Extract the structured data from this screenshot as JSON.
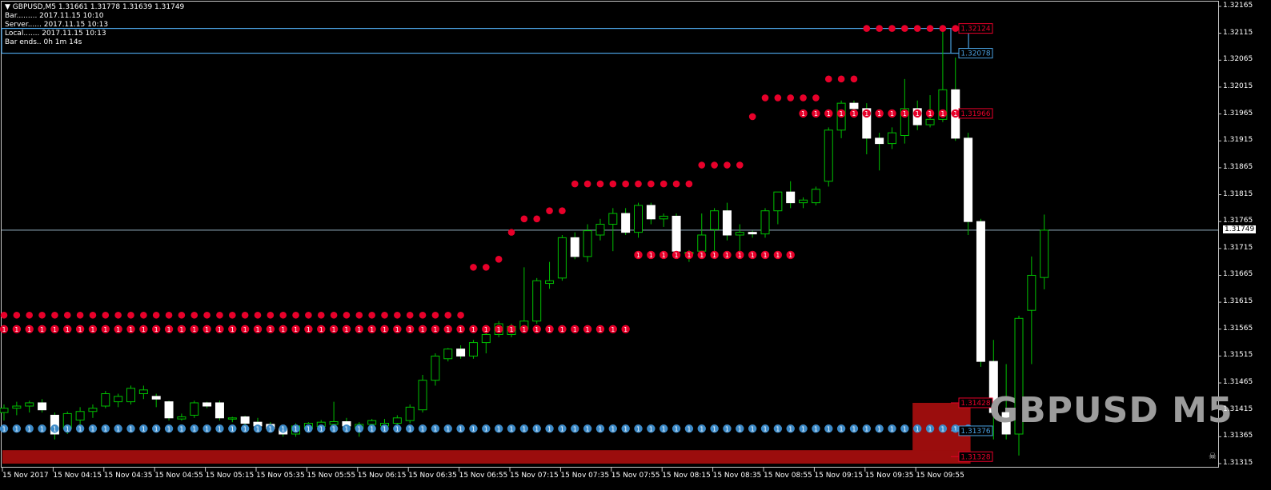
{
  "header": {
    "symbol_line": "GBPUSD,M5  1.31661 1.31778 1.31639 1.31749",
    "bar": "Bar......... 2017.11.15 10:10",
    "server": "Server...... 2017.11.15 10:13",
    "local": "Local....... 2017.11.15 10:13",
    "bar_ends": "Bar ends.. 0h 1m 14s"
  },
  "watermark": "GBPUSD M5",
  "colors": {
    "background": "#000000",
    "bull": "#00c000",
    "bear_fill": "#ffffff",
    "resistance": "#e8002a",
    "support": "#3c8ac8",
    "zone": "#9b0d0d",
    "info_box": "#4aa0e0"
  },
  "price_axis": {
    "min": 1.31315,
    "max": 1.32165,
    "ticks": [
      "1.32165",
      "1.32115",
      "1.32065",
      "1.32015",
      "1.31965",
      "1.31915",
      "1.31865",
      "1.31815",
      "1.31765",
      "1.31715",
      "1.31665",
      "1.31615",
      "1.31565",
      "1.31515",
      "1.31465",
      "1.31415",
      "1.31365",
      "1.31315"
    ],
    "current": "1.31749"
  },
  "time_axis": {
    "labels": [
      "15 Nov 2017",
      "15 Nov 04:15",
      "15 Nov 04:35",
      "15 Nov 04:55",
      "15 Nov 05:15",
      "15 Nov 05:35",
      "15 Nov 05:55",
      "15 Nov 06:15",
      "15 Nov 06:35",
      "15 Nov 06:55",
      "15 Nov 07:15",
      "15 Nov 07:35",
      "15 Nov 07:55",
      "15 Nov 08:15",
      "15 Nov 08:35",
      "15 Nov 08:55",
      "15 Nov 09:15",
      "15 Nov 09:35",
      "15 Nov 09:55"
    ]
  },
  "level_labels": [
    {
      "text": "1.32124",
      "price": 1.32124,
      "color": "#e8002a"
    },
    {
      "text": "1.32078",
      "price": 1.32078,
      "color": "#4aa0e0"
    },
    {
      "text": "1.31966",
      "price": 1.31966,
      "color": "#e8002a"
    },
    {
      "text": "1.31428",
      "price": 1.31428,
      "color": "#e8002a"
    },
    {
      "text": "1.31376",
      "price": 1.31376,
      "color": "#4aa0e0"
    },
    {
      "text": "1.31328",
      "price": 1.31328,
      "color": "#e8002a"
    }
  ],
  "chart_data": {
    "type": "candlestick",
    "symbol": "GBPUSD",
    "timeframe": "M5",
    "candles": [
      [
        1.3141,
        1.31425,
        1.31395,
        1.31418
      ],
      [
        1.31418,
        1.3143,
        1.31405,
        1.31422
      ],
      [
        1.31422,
        1.31432,
        1.3141,
        1.31428
      ],
      [
        1.31428,
        1.31435,
        1.3141,
        1.31415
      ],
      [
        1.31405,
        1.3141,
        1.3136,
        1.3137
      ],
      [
        1.3138,
        1.31412,
        1.3137,
        1.31408
      ],
      [
        1.31396,
        1.3142,
        1.3138,
        1.31412
      ],
      [
        1.31412,
        1.31425,
        1.314,
        1.31418
      ],
      [
        1.31422,
        1.3145,
        1.31418,
        1.31445
      ],
      [
        1.3143,
        1.31445,
        1.3142,
        1.3144
      ],
      [
        1.3143,
        1.3146,
        1.31425,
        1.31455
      ],
      [
        1.31445,
        1.3146,
        1.31435,
        1.31452
      ],
      [
        1.3144,
        1.31445,
        1.3142,
        1.31435
      ],
      [
        1.3143,
        1.31432,
        1.31395,
        1.314
      ],
      [
        1.31398,
        1.31408,
        1.31395,
        1.31402
      ],
      [
        1.31405,
        1.31432,
        1.314,
        1.31428
      ],
      [
        1.31428,
        1.3143,
        1.31418,
        1.31422
      ],
      [
        1.31428,
        1.31432,
        1.31395,
        1.314
      ],
      [
        1.31398,
        1.31402,
        1.31392,
        1.314
      ],
      [
        1.31402,
        1.31404,
        1.31385,
        1.3139
      ],
      [
        1.31392,
        1.314,
        1.3138,
        1.31385
      ],
      [
        1.31388,
        1.31392,
        1.31375,
        1.3138
      ],
      [
        1.3138,
        1.31385,
        1.31365,
        1.3137
      ],
      [
        1.3137,
        1.3139,
        1.31365,
        1.31385
      ],
      [
        1.3138,
        1.31392,
        1.31378,
        1.3139
      ],
      [
        1.31384,
        1.31396,
        1.31378,
        1.31392
      ],
      [
        1.31388,
        1.3143,
        1.3138,
        1.31393
      ],
      [
        1.31393,
        1.314,
        1.3138,
        1.31385
      ],
      [
        1.3138,
        1.31392,
        1.31365,
        1.31388
      ],
      [
        1.31388,
        1.31398,
        1.31378,
        1.31395
      ],
      [
        1.31385,
        1.31398,
        1.3138,
        1.3139
      ],
      [
        1.3139,
        1.31405,
        1.31385,
        1.314
      ],
      [
        1.31395,
        1.31425,
        1.3139,
        1.3142
      ],
      [
        1.31415,
        1.3148,
        1.3141,
        1.3147
      ],
      [
        1.3147,
        1.3152,
        1.3146,
        1.31515
      ],
      [
        1.3151,
        1.3153,
        1.31505,
        1.31528
      ],
      [
        1.31528,
        1.31535,
        1.3151,
        1.31515
      ],
      [
        1.31515,
        1.31545,
        1.3151,
        1.3154
      ],
      [
        1.3154,
        1.3156,
        1.3152,
        1.31555
      ],
      [
        1.31555,
        1.3158,
        1.3155,
        1.31575
      ],
      [
        1.31555,
        1.31575,
        1.3155,
        1.3157
      ],
      [
        1.31565,
        1.3168,
        1.3156,
        1.3158
      ],
      [
        1.3158,
        1.3166,
        1.31575,
        1.31655
      ],
      [
        1.3165,
        1.3169,
        1.3164,
        1.31655
      ],
      [
        1.3166,
        1.3174,
        1.31655,
        1.31735
      ],
      [
        1.31735,
        1.31745,
        1.31695,
        1.317
      ],
      [
        1.317,
        1.3176,
        1.3169,
        1.31748
      ],
      [
        1.3174,
        1.3177,
        1.3173,
        1.3176
      ],
      [
        1.3176,
        1.3179,
        1.3171,
        1.3178
      ],
      [
        1.3178,
        1.3179,
        1.3174,
        1.31745
      ],
      [
        1.31745,
        1.318,
        1.31735,
        1.31795
      ],
      [
        1.31795,
        1.318,
        1.3176,
        1.3177
      ],
      [
        1.3177,
        1.3178,
        1.31755,
        1.31775
      ],
      [
        1.31775,
        1.3178,
        1.317,
        1.3171
      ],
      [
        1.31705,
        1.31712,
        1.3169,
        1.31708
      ],
      [
        1.3171,
        1.3178,
        1.317,
        1.3174
      ],
      [
        1.3175,
        1.3179,
        1.31705,
        1.31785
      ],
      [
        1.31785,
        1.318,
        1.3173,
        1.3174
      ],
      [
        1.3174,
        1.3176,
        1.317,
        1.31745
      ],
      [
        1.31745,
        1.31748,
        1.31735,
        1.31742
      ],
      [
        1.31742,
        1.3179,
        1.31735,
        1.31785
      ],
      [
        1.31785,
        1.3182,
        1.3176,
        1.3182
      ],
      [
        1.3182,
        1.3184,
        1.3179,
        1.318
      ],
      [
        1.318,
        1.3181,
        1.3179,
        1.31805
      ],
      [
        1.318,
        1.3183,
        1.31795,
        1.31825
      ],
      [
        1.3184,
        1.3194,
        1.3183,
        1.31935
      ],
      [
        1.31935,
        1.3199,
        1.3192,
        1.31985
      ],
      [
        1.31985,
        1.3199,
        1.3196,
        1.31975
      ],
      [
        1.31975,
        1.31985,
        1.3189,
        1.3192
      ],
      [
        1.3192,
        1.3193,
        1.3186,
        1.3191
      ],
      [
        1.3191,
        1.3194,
        1.319,
        1.3193
      ],
      [
        1.31925,
        1.3203,
        1.3191,
        1.31975
      ],
      [
        1.31975,
        1.3199,
        1.31935,
        1.31945
      ],
      [
        1.31945,
        1.32,
        1.3194,
        1.31955
      ],
      [
        1.31955,
        1.3213,
        1.3195,
        1.3201
      ],
      [
        1.3201,
        1.3207,
        1.31915,
        1.3192
      ],
      [
        1.3192,
        1.3193,
        1.3174,
        1.31765
      ],
      [
        1.31765,
        1.3177,
        1.31495,
        1.31505
      ],
      [
        1.31505,
        1.31545,
        1.3136,
        1.3141
      ],
      [
        1.3141,
        1.315,
        1.3136,
        1.3137
      ],
      [
        1.3137,
        1.3159,
        1.3133,
        1.31585
      ],
      [
        1.316,
        1.317,
        1.315,
        1.31665
      ],
      [
        1.31661,
        1.31778,
        1.31639,
        1.31749
      ]
    ],
    "resistance_levels": [
      {
        "price": 1.31591,
        "from": 0,
        "to": 36
      },
      {
        "price": 1.3168,
        "from": 37,
        "to": 38
      },
      {
        "price": 1.31695,
        "from": 39,
        "to": 39
      },
      {
        "price": 1.31745,
        "from": 40,
        "to": 40
      },
      {
        "price": 1.3177,
        "from": 41,
        "to": 42
      },
      {
        "price": 1.31785,
        "from": 43,
        "to": 44
      },
      {
        "price": 1.31835,
        "from": 45,
        "to": 54
      },
      {
        "price": 1.3187,
        "from": 55,
        "to": 58
      },
      {
        "price": 1.3196,
        "from": 59,
        "to": 59
      },
      {
        "price": 1.31995,
        "from": 60,
        "to": 64
      },
      {
        "price": 1.3203,
        "from": 65,
        "to": 67
      },
      {
        "price": 1.32124,
        "from": 68,
        "to": 76
      }
    ],
    "numbered_levels": [
      {
        "price": 1.31565,
        "from": 0,
        "to": 49,
        "color": "#e8002a",
        "label": "1"
      },
      {
        "price": 1.31703,
        "from": 50,
        "to": 62,
        "color": "#e8002a",
        "label": "1"
      },
      {
        "price": 1.31966,
        "from": 63,
        "to": 76,
        "color": "#e8002a",
        "label": "1"
      },
      {
        "price": 1.3138,
        "from": 0,
        "to": 76,
        "color": "#3c8ac8",
        "label": "1"
      }
    ],
    "zones": [
      {
        "top": 1.31428,
        "bottom": 1.31328,
        "from_index": 72,
        "to_index": 76
      },
      {
        "top": 1.3134,
        "bottom": 1.31315,
        "from_index": 0,
        "to_index": 76
      }
    ],
    "info_box": {
      "top": 1.32124,
      "bottom": 1.32078
    }
  }
}
